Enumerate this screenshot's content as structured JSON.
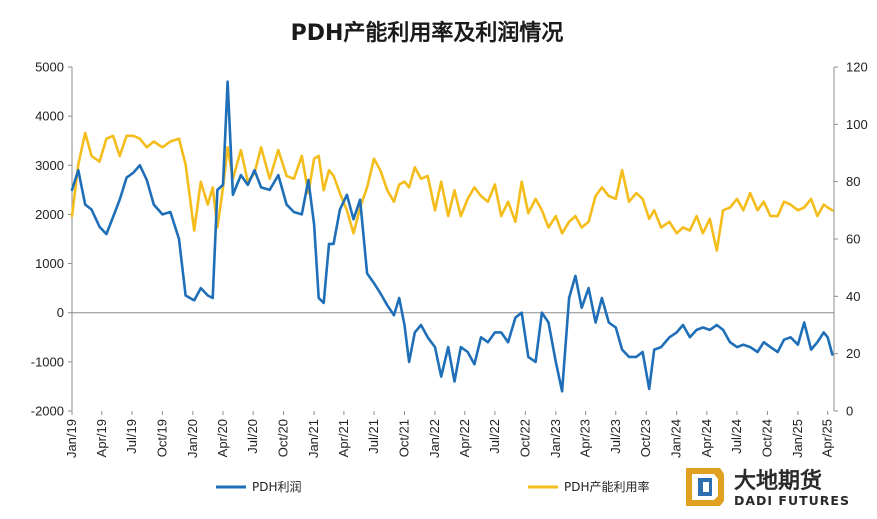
{
  "chart_data": {
    "type": "line",
    "title": "PDH产能利用率及利润情况",
    "x_tick_labels": [
      "Jan/19",
      "Apr/19",
      "Jul/19",
      "Oct/19",
      "Jan/20",
      "Apr/20",
      "Jul/20",
      "Oct/20",
      "Jan/21",
      "Apr/21",
      "Jul/21",
      "Oct/21",
      "Jan/22",
      "Apr/22",
      "Jul/22",
      "Oct/22",
      "Jan/23",
      "Apr/23",
      "Jul/23",
      "Oct/23",
      "Jan/24",
      "Apr/24",
      "Jul/24",
      "Oct/24",
      "Jan/25",
      "Apr/25"
    ],
    "y_left": {
      "ylim": [
        -2000,
        5000
      ],
      "ticks": [
        "-2000",
        "-1000",
        "0",
        "1000",
        "2000",
        "3000",
        "4000",
        "5000"
      ]
    },
    "y_right": {
      "ylim": [
        0,
        120
      ],
      "ticks": [
        "0",
        "20",
        "40",
        "60",
        "80",
        "100",
        "120"
      ]
    },
    "series": [
      {
        "name": "PDH利润",
        "axis": "left",
        "color": "#1f6fb8",
        "x": [
          "2019-01-01",
          "2019-01-20",
          "2019-02-10",
          "2019-03-01",
          "2019-03-25",
          "2019-04-15",
          "2019-05-05",
          "2019-05-25",
          "2019-06-15",
          "2019-07-05",
          "2019-07-25",
          "2019-08-15",
          "2019-09-05",
          "2019-10-01",
          "2019-10-25",
          "2019-11-20",
          "2019-12-10",
          "2020-01-05",
          "2020-01-25",
          "2020-02-15",
          "2020-03-01",
          "2020-03-15",
          "2020-04-01",
          "2020-04-15",
          "2020-05-01",
          "2020-05-25",
          "2020-06-15",
          "2020-07-05",
          "2020-07-25",
          "2020-08-20",
          "2020-09-15",
          "2020-10-10",
          "2020-11-01",
          "2020-11-25",
          "2020-12-15",
          "2021-01-01",
          "2021-01-15",
          "2021-01-30",
          "2021-02-15",
          "2021-03-01",
          "2021-03-20",
          "2021-04-10",
          "2021-04-30",
          "2021-05-20",
          "2021-06-10",
          "2021-07-01",
          "2021-07-20",
          "2021-08-10",
          "2021-08-30",
          "2021-09-15",
          "2021-10-01",
          "2021-10-15",
          "2021-11-01",
          "2021-11-20",
          "2021-12-10",
          "2022-01-01",
          "2022-01-20",
          "2022-02-10",
          "2022-03-01",
          "2022-03-20",
          "2022-04-10",
          "2022-04-30",
          "2022-05-20",
          "2022-06-10",
          "2022-07-01",
          "2022-07-20",
          "2022-08-10",
          "2022-09-01",
          "2022-09-20",
          "2022-10-10",
          "2022-11-01",
          "2022-11-20",
          "2022-12-10",
          "2023-01-01",
          "2023-01-20",
          "2023-02-10",
          "2023-03-01",
          "2023-03-20",
          "2023-04-10",
          "2023-05-01",
          "2023-05-20",
          "2023-06-10",
          "2023-07-01",
          "2023-07-20",
          "2023-08-10",
          "2023-09-01",
          "2023-09-20",
          "2023-10-10",
          "2023-10-25",
          "2023-11-15",
          "2023-12-10",
          "2024-01-01",
          "2024-01-20",
          "2024-02-10",
          "2024-03-01",
          "2024-03-20",
          "2024-04-10",
          "2024-05-01",
          "2024-05-20",
          "2024-06-10",
          "2024-07-01",
          "2024-07-20",
          "2024-08-10",
          "2024-09-01",
          "2024-09-20",
          "2024-10-10",
          "2024-11-01",
          "2024-11-20",
          "2024-12-10",
          "2025-01-01",
          "2025-01-20",
          "2025-02-10",
          "2025-03-01",
          "2025-03-20",
          "2025-04-01",
          "2025-04-15"
        ],
        "values": [
          2500,
          2900,
          2200,
          2100,
          1750,
          1600,
          1950,
          2300,
          2750,
          2850,
          3000,
          2700,
          2200,
          2000,
          2050,
          1500,
          350,
          250,
          500,
          350,
          300,
          2500,
          2600,
          4700,
          2400,
          2800,
          2600,
          2900,
          2550,
          2500,
          2800,
          2200,
          2050,
          2000,
          2700,
          1800,
          300,
          200,
          1400,
          1400,
          2100,
          2400,
          1900,
          2300,
          800,
          600,
          400,
          150,
          -50,
          300,
          -250,
          -1000,
          -400,
          -250,
          -500,
          -700,
          -1300,
          -700,
          -1400,
          -700,
          -800,
          -1050,
          -500,
          -600,
          -400,
          -400,
          -600,
          -100,
          0,
          -900,
          -1000,
          0,
          -200,
          -1000,
          -1600,
          300,
          750,
          100,
          500,
          -200,
          300,
          -200,
          -300,
          -750,
          -900,
          -900,
          -800,
          -1550,
          -750,
          -700,
          -500,
          -400,
          -250,
          -500,
          -350,
          -300,
          -350,
          -250,
          -350,
          -600,
          -700,
          -650,
          -700,
          -800,
          -600,
          -700,
          -800,
          -550,
          -500,
          -650,
          -200,
          -750,
          -600,
          -400,
          -500,
          -850
        ]
      },
      {
        "name": "PDH产能利用率",
        "axis": "right",
        "color": "#f5bd1c",
        "x": [
          "2019-01-01",
          "2019-01-20",
          "2019-02-10",
          "2019-03-01",
          "2019-03-25",
          "2019-04-15",
          "2019-05-05",
          "2019-05-25",
          "2019-06-15",
          "2019-07-05",
          "2019-07-25",
          "2019-08-15",
          "2019-09-05",
          "2019-10-01",
          "2019-10-25",
          "2019-11-20",
          "2019-12-10",
          "2020-01-05",
          "2020-01-25",
          "2020-02-15",
          "2020-03-01",
          "2020-03-15",
          "2020-04-01",
          "2020-04-15",
          "2020-05-01",
          "2020-05-25",
          "2020-06-15",
          "2020-07-05",
          "2020-07-25",
          "2020-08-20",
          "2020-09-15",
          "2020-10-10",
          "2020-11-01",
          "2020-11-25",
          "2020-12-15",
          "2021-01-01",
          "2021-01-15",
          "2021-01-30",
          "2021-02-15",
          "2021-03-01",
          "2021-03-20",
          "2021-04-10",
          "2021-04-30",
          "2021-05-20",
          "2021-06-10",
          "2021-07-01",
          "2021-07-20",
          "2021-08-10",
          "2021-08-30",
          "2021-09-15",
          "2021-10-01",
          "2021-10-15",
          "2021-11-01",
          "2021-11-20",
          "2021-12-10",
          "2022-01-01",
          "2022-01-20",
          "2022-02-10",
          "2022-03-01",
          "2022-03-20",
          "2022-04-10",
          "2022-04-30",
          "2022-05-20",
          "2022-06-10",
          "2022-07-01",
          "2022-07-20",
          "2022-08-10",
          "2022-09-01",
          "2022-09-20",
          "2022-10-10",
          "2022-11-01",
          "2022-11-20",
          "2022-12-10",
          "2023-01-01",
          "2023-01-20",
          "2023-02-10",
          "2023-03-01",
          "2023-03-20",
          "2023-04-10",
          "2023-05-01",
          "2023-05-20",
          "2023-06-10",
          "2023-07-01",
          "2023-07-20",
          "2023-08-10",
          "2023-09-01",
          "2023-09-20",
          "2023-10-10",
          "2023-10-25",
          "2023-11-15",
          "2023-12-10",
          "2024-01-01",
          "2024-01-20",
          "2024-02-10",
          "2024-03-01",
          "2024-03-20",
          "2024-04-10",
          "2024-05-01",
          "2024-05-20",
          "2024-06-10",
          "2024-07-01",
          "2024-07-20",
          "2024-08-10",
          "2024-09-01",
          "2024-09-20",
          "2024-10-10",
          "2024-11-01",
          "2024-11-20",
          "2024-12-10",
          "2025-01-01",
          "2025-01-20",
          "2025-02-10",
          "2025-03-01",
          "2025-03-20",
          "2025-04-01",
          "2025-04-15"
        ],
        "values": [
          68,
          86,
          97,
          89,
          87,
          95,
          96,
          89,
          96,
          96,
          95,
          92,
          94,
          92,
          94,
          95,
          86,
          63,
          80,
          72,
          78,
          64,
          78,
          92,
          81,
          91,
          80,
          83,
          92,
          81,
          91,
          82,
          81,
          89,
          76,
          88,
          89,
          77,
          84,
          82,
          76,
          70,
          62,
          71,
          78,
          88,
          84,
          77,
          73,
          79,
          80,
          78,
          85,
          81,
          82,
          70,
          80,
          68,
          77,
          68,
          74,
          78,
          75,
          73,
          79,
          68,
          73,
          66,
          80,
          69,
          74,
          70,
          64,
          68,
          62,
          66,
          68,
          64,
          66,
          75,
          78,
          75,
          74,
          84,
          73,
          76,
          74,
          67,
          70,
          64,
          66,
          62,
          64,
          63,
          68,
          62,
          67,
          56,
          70,
          71,
          74,
          70,
          76,
          70,
          73,
          68,
          68,
          73,
          72,
          70,
          71,
          74,
          68,
          72,
          71,
          70
        ]
      }
    ]
  },
  "logo": {
    "cn": "大地期货",
    "en": "DADI FUTURES"
  }
}
